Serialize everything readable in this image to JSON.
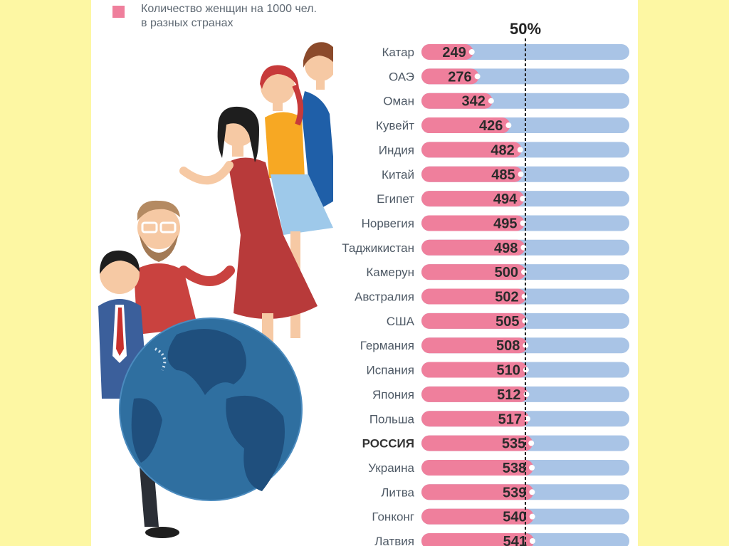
{
  "colors": {
    "background": "#fdf7a3",
    "panel": "#ffffff",
    "female_bar": "#ef7f9c",
    "remainder_bar": "#a9c4e6",
    "label_text": "#4f5a66",
    "value_text": "#2b2b2b",
    "globe_ocean": "#2f6fa0",
    "globe_land": "#1f4f7d"
  },
  "legend": {
    "line1": "Количество женщин на 1000 чел.",
    "line2": "в разных странах",
    "swatch_icon": "pink-square-icon"
  },
  "chart_data": {
    "type": "bar",
    "orientation": "horizontal",
    "stacked_to_total": 1000,
    "reference_line": {
      "value": 500,
      "label": "50%",
      "style": "dashed"
    },
    "highlighted_category": "РОССИЯ",
    "categories": [
      "Катар",
      "ОАЭ",
      "Оман",
      "Кувейт",
      "Индия",
      "Китай",
      "Египет",
      "Норвегия",
      "Таджикистан",
      "Камерун",
      "Австралия",
      "США",
      "Германия",
      "Испания",
      "Япония",
      "Польша",
      "РОССИЯ",
      "Украина",
      "Литва",
      "Гонконг",
      "Латвия"
    ],
    "values": [
      249,
      276,
      342,
      426,
      482,
      485,
      494,
      495,
      498,
      500,
      502,
      505,
      508,
      510,
      512,
      517,
      535,
      538,
      539,
      540,
      541
    ],
    "value_labels": [
      "249",
      "276",
      "342",
      "426",
      "482",
      "485",
      "494",
      "495",
      "498",
      "500",
      "502",
      "505",
      "508",
      "510",
      "512",
      "517",
      "535",
      "538",
      "539",
      "540",
      "541"
    ],
    "xlim": [
      0,
      1000
    ]
  },
  "illustration": {
    "people_icon": "group-of-people-icon",
    "globe_icon": "globe-icon"
  }
}
